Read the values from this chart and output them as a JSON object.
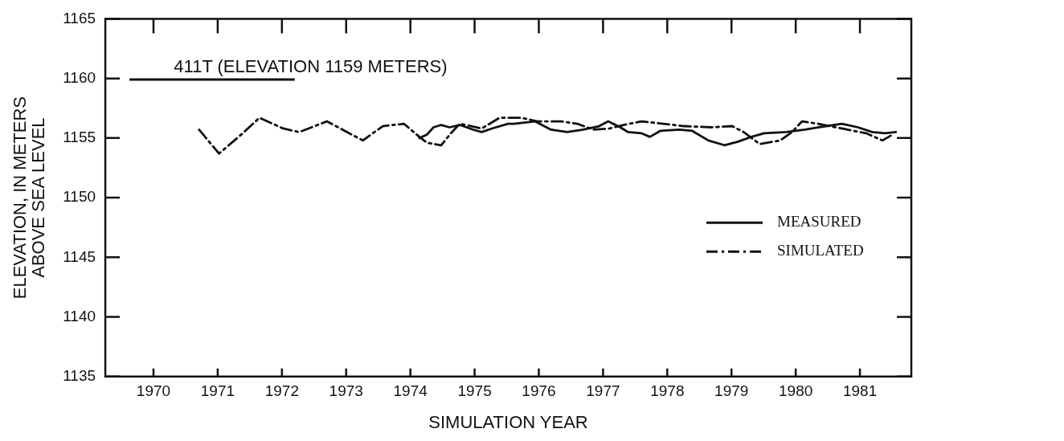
{
  "chart_data": {
    "type": "line",
    "xlabel": "SIMULATION YEAR",
    "ylabel": "ELEVATION, IN METERS\nABOVE SEA LEVEL",
    "xlim": [
      1969.25,
      1981.8
    ],
    "xticks": [
      1970,
      1971,
      1972,
      1973,
      1974,
      1975,
      1976,
      1977,
      1978,
      1979,
      1980,
      1981
    ],
    "ylim": [
      1135,
      1165
    ],
    "yticks": [
      1135,
      1140,
      1145,
      1150,
      1155,
      1160,
      1165
    ],
    "grid": false,
    "legend": "right",
    "marker": "none",
    "annotations": [
      "411T (ELEVATION 1159 METERS)"
    ],
    "series": [
      {
        "name": "MEASURED",
        "color": "#111111",
        "line_style": "solid",
        "x": [
          1974.14,
          1974.26,
          1974.36,
          1974.48,
          1974.61,
          1974.77,
          1974.98,
          1975.11,
          1975.27,
          1975.52,
          1975.61,
          1975.94,
          1976.19,
          1976.44,
          1976.69,
          1976.94,
          1977.08,
          1977.27,
          1977.39,
          1977.6,
          1977.73,
          1977.89,
          1978.19,
          1978.39,
          1978.64,
          1978.89,
          1979.1,
          1979.31,
          1979.51,
          1979.85,
          1980.14,
          1980.35,
          1980.72,
          1980.97,
          1981.19,
          1981.39,
          1981.56
        ],
        "values": [
          1155.0,
          1155.3,
          1155.9,
          1156.1,
          1155.9,
          1156.1,
          1155.7,
          1155.5,
          1155.8,
          1156.2,
          1156.2,
          1156.4,
          1155.7,
          1155.5,
          1155.7,
          1156.0,
          1156.4,
          1155.9,
          1155.5,
          1155.4,
          1155.1,
          1155.6,
          1155.7,
          1155.6,
          1154.8,
          1154.4,
          1154.7,
          1155.1,
          1155.4,
          1155.5,
          1155.7,
          1155.9,
          1156.2,
          1155.9,
          1155.5,
          1155.4,
          1155.5
        ]
      },
      {
        "name": "SIMULATED",
        "color": "#111111",
        "line_style": "dashed",
        "x": [
          1970.71,
          1971.02,
          1971.39,
          1971.65,
          1972.02,
          1972.27,
          1972.7,
          1972.98,
          1973.26,
          1973.57,
          1973.9,
          1974.14,
          1974.26,
          1974.48,
          1974.63,
          1974.77,
          1975.11,
          1975.39,
          1975.73,
          1975.98,
          1976.35,
          1976.6,
          1976.85,
          1977.1,
          1977.32,
          1977.6,
          1977.94,
          1978.26,
          1978.69,
          1979.01,
          1979.19,
          1979.44,
          1979.76,
          1979.94,
          1980.1,
          1980.35,
          1980.72,
          1981.1,
          1981.35,
          1981.51
        ],
        "values": [
          1155.7,
          1153.7,
          1155.4,
          1156.7,
          1155.8,
          1155.5,
          1156.4,
          1155.6,
          1154.8,
          1156.0,
          1156.2,
          1155.1,
          1154.6,
          1154.4,
          1155.4,
          1156.2,
          1155.8,
          1156.7,
          1156.7,
          1156.4,
          1156.4,
          1156.2,
          1155.7,
          1155.8,
          1156.1,
          1156.4,
          1156.2,
          1156.0,
          1155.9,
          1156.0,
          1155.5,
          1154.5,
          1154.8,
          1155.5,
          1156.4,
          1156.2,
          1155.8,
          1155.4,
          1154.8,
          1155.3
        ]
      }
    ]
  }
}
